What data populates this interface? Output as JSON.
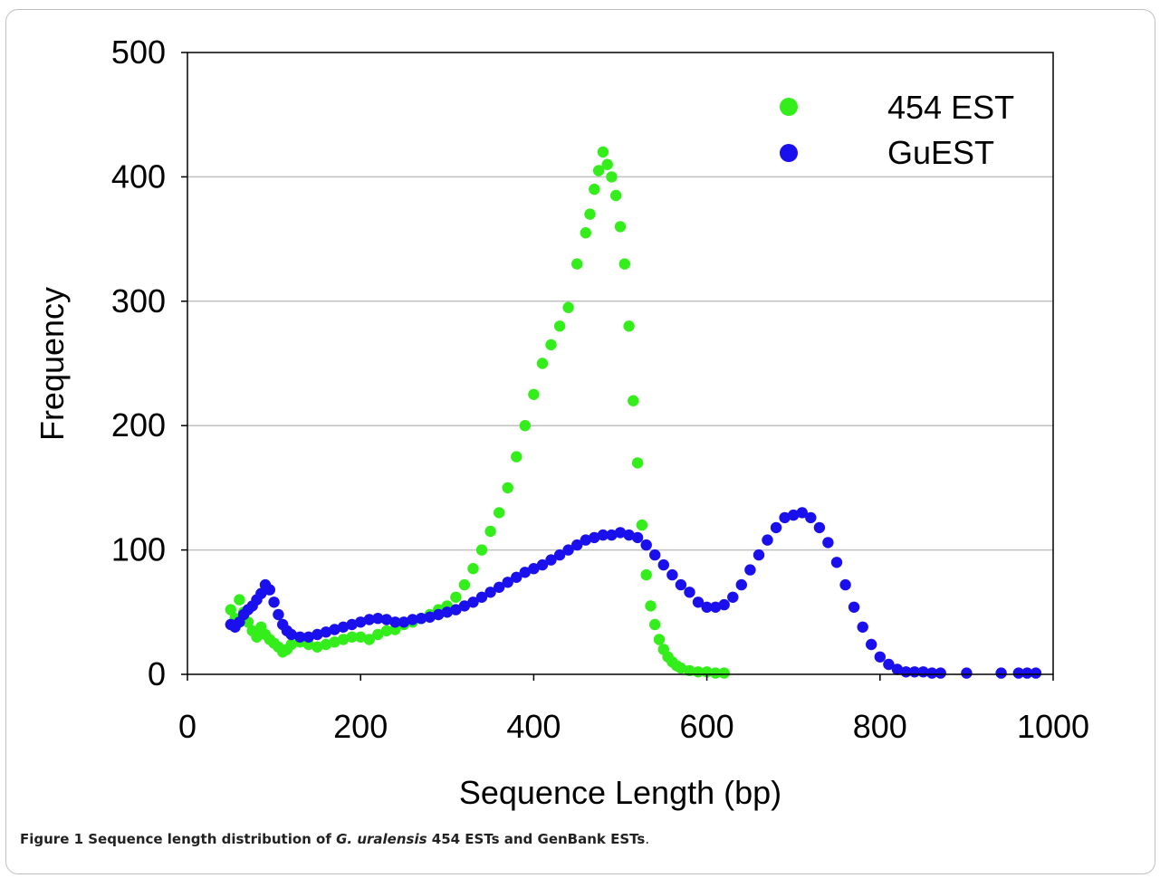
{
  "caption": {
    "prefix": "Figure 1 Sequence length distribution of ",
    "species": "G. uralensis",
    "suffix": " 454 ESTs and GenBank ESTs",
    "end": "."
  },
  "colors": {
    "series_454": "#33ee1a",
    "series_guest": "#1a10ee",
    "grid": "#c0c0c0",
    "axis": "#000000"
  },
  "chart_data": {
    "type": "scatter",
    "title": "",
    "xlabel": "Sequence Length (bp)",
    "ylabel": "Frequency",
    "xlim": [
      0,
      1000
    ],
    "ylim": [
      0,
      500
    ],
    "x_ticks": [
      0,
      200,
      400,
      600,
      800,
      1000
    ],
    "y_ticks": [
      0,
      100,
      200,
      300,
      400,
      500
    ],
    "grid": "horizontal",
    "legend_position": "top-right",
    "series": [
      {
        "name": "454 EST",
        "color": "#33ee1a",
        "points": [
          [
            50,
            52
          ],
          [
            55,
            45
          ],
          [
            60,
            60
          ],
          [
            65,
            50
          ],
          [
            70,
            42
          ],
          [
            75,
            35
          ],
          [
            80,
            30
          ],
          [
            85,
            38
          ],
          [
            90,
            32
          ],
          [
            95,
            28
          ],
          [
            100,
            25
          ],
          [
            105,
            22
          ],
          [
            110,
            18
          ],
          [
            115,
            20
          ],
          [
            120,
            24
          ],
          [
            130,
            26
          ],
          [
            140,
            24
          ],
          [
            150,
            22
          ],
          [
            160,
            24
          ],
          [
            170,
            26
          ],
          [
            180,
            28
          ],
          [
            190,
            30
          ],
          [
            200,
            30
          ],
          [
            210,
            28
          ],
          [
            220,
            32
          ],
          [
            230,
            35
          ],
          [
            240,
            36
          ],
          [
            250,
            40
          ],
          [
            260,
            42
          ],
          [
            270,
            45
          ],
          [
            280,
            48
          ],
          [
            290,
            52
          ],
          [
            300,
            55
          ],
          [
            310,
            62
          ],
          [
            320,
            72
          ],
          [
            330,
            85
          ],
          [
            340,
            100
          ],
          [
            350,
            115
          ],
          [
            360,
            130
          ],
          [
            370,
            150
          ],
          [
            380,
            175
          ],
          [
            390,
            200
          ],
          [
            400,
            225
          ],
          [
            410,
            250
          ],
          [
            420,
            265
          ],
          [
            430,
            280
          ],
          [
            440,
            295
          ],
          [
            450,
            330
          ],
          [
            460,
            355
          ],
          [
            465,
            370
          ],
          [
            470,
            390
          ],
          [
            475,
            405
          ],
          [
            480,
            420
          ],
          [
            485,
            410
          ],
          [
            490,
            400
          ],
          [
            495,
            385
          ],
          [
            500,
            360
          ],
          [
            505,
            330
          ],
          [
            510,
            280
          ],
          [
            515,
            220
          ],
          [
            520,
            170
          ],
          [
            525,
            120
          ],
          [
            530,
            80
          ],
          [
            535,
            55
          ],
          [
            540,
            40
          ],
          [
            545,
            28
          ],
          [
            550,
            20
          ],
          [
            555,
            14
          ],
          [
            560,
            10
          ],
          [
            565,
            7
          ],
          [
            570,
            5
          ],
          [
            580,
            3
          ],
          [
            590,
            2
          ],
          [
            600,
            2
          ],
          [
            610,
            1
          ],
          [
            620,
            1
          ]
        ]
      },
      {
        "name": "GuEST",
        "color": "#1a10ee",
        "points": [
          [
            50,
            40
          ],
          [
            55,
            38
          ],
          [
            60,
            42
          ],
          [
            65,
            48
          ],
          [
            70,
            52
          ],
          [
            75,
            55
          ],
          [
            80,
            60
          ],
          [
            85,
            65
          ],
          [
            90,
            72
          ],
          [
            95,
            68
          ],
          [
            100,
            58
          ],
          [
            105,
            48
          ],
          [
            110,
            40
          ],
          [
            115,
            35
          ],
          [
            120,
            32
          ],
          [
            130,
            30
          ],
          [
            140,
            30
          ],
          [
            150,
            32
          ],
          [
            160,
            34
          ],
          [
            170,
            36
          ],
          [
            180,
            38
          ],
          [
            190,
            40
          ],
          [
            200,
            42
          ],
          [
            210,
            44
          ],
          [
            220,
            45
          ],
          [
            230,
            44
          ],
          [
            240,
            42
          ],
          [
            250,
            42
          ],
          [
            260,
            44
          ],
          [
            270,
            45
          ],
          [
            280,
            46
          ],
          [
            290,
            48
          ],
          [
            300,
            50
          ],
          [
            310,
            52
          ],
          [
            320,
            55
          ],
          [
            330,
            58
          ],
          [
            340,
            62
          ],
          [
            350,
            66
          ],
          [
            360,
            70
          ],
          [
            370,
            74
          ],
          [
            380,
            78
          ],
          [
            390,
            82
          ],
          [
            400,
            85
          ],
          [
            410,
            88
          ],
          [
            420,
            92
          ],
          [
            430,
            96
          ],
          [
            440,
            100
          ],
          [
            450,
            104
          ],
          [
            460,
            108
          ],
          [
            470,
            110
          ],
          [
            480,
            112
          ],
          [
            490,
            112
          ],
          [
            500,
            114
          ],
          [
            510,
            112
          ],
          [
            520,
            110
          ],
          [
            530,
            104
          ],
          [
            540,
            96
          ],
          [
            550,
            88
          ],
          [
            560,
            80
          ],
          [
            570,
            72
          ],
          [
            580,
            66
          ],
          [
            590,
            58
          ],
          [
            600,
            54
          ],
          [
            610,
            54
          ],
          [
            620,
            56
          ],
          [
            630,
            62
          ],
          [
            640,
            72
          ],
          [
            650,
            84
          ],
          [
            660,
            96
          ],
          [
            670,
            108
          ],
          [
            680,
            118
          ],
          [
            690,
            126
          ],
          [
            700,
            128
          ],
          [
            710,
            130
          ],
          [
            720,
            126
          ],
          [
            730,
            118
          ],
          [
            740,
            106
          ],
          [
            750,
            90
          ],
          [
            760,
            72
          ],
          [
            770,
            54
          ],
          [
            780,
            38
          ],
          [
            790,
            24
          ],
          [
            800,
            14
          ],
          [
            810,
            8
          ],
          [
            820,
            4
          ],
          [
            830,
            2
          ],
          [
            840,
            2
          ],
          [
            850,
            2
          ],
          [
            860,
            1
          ],
          [
            870,
            1
          ],
          [
            900,
            1
          ],
          [
            940,
            1
          ],
          [
            960,
            1
          ],
          [
            970,
            1
          ],
          [
            980,
            1
          ]
        ]
      }
    ]
  }
}
